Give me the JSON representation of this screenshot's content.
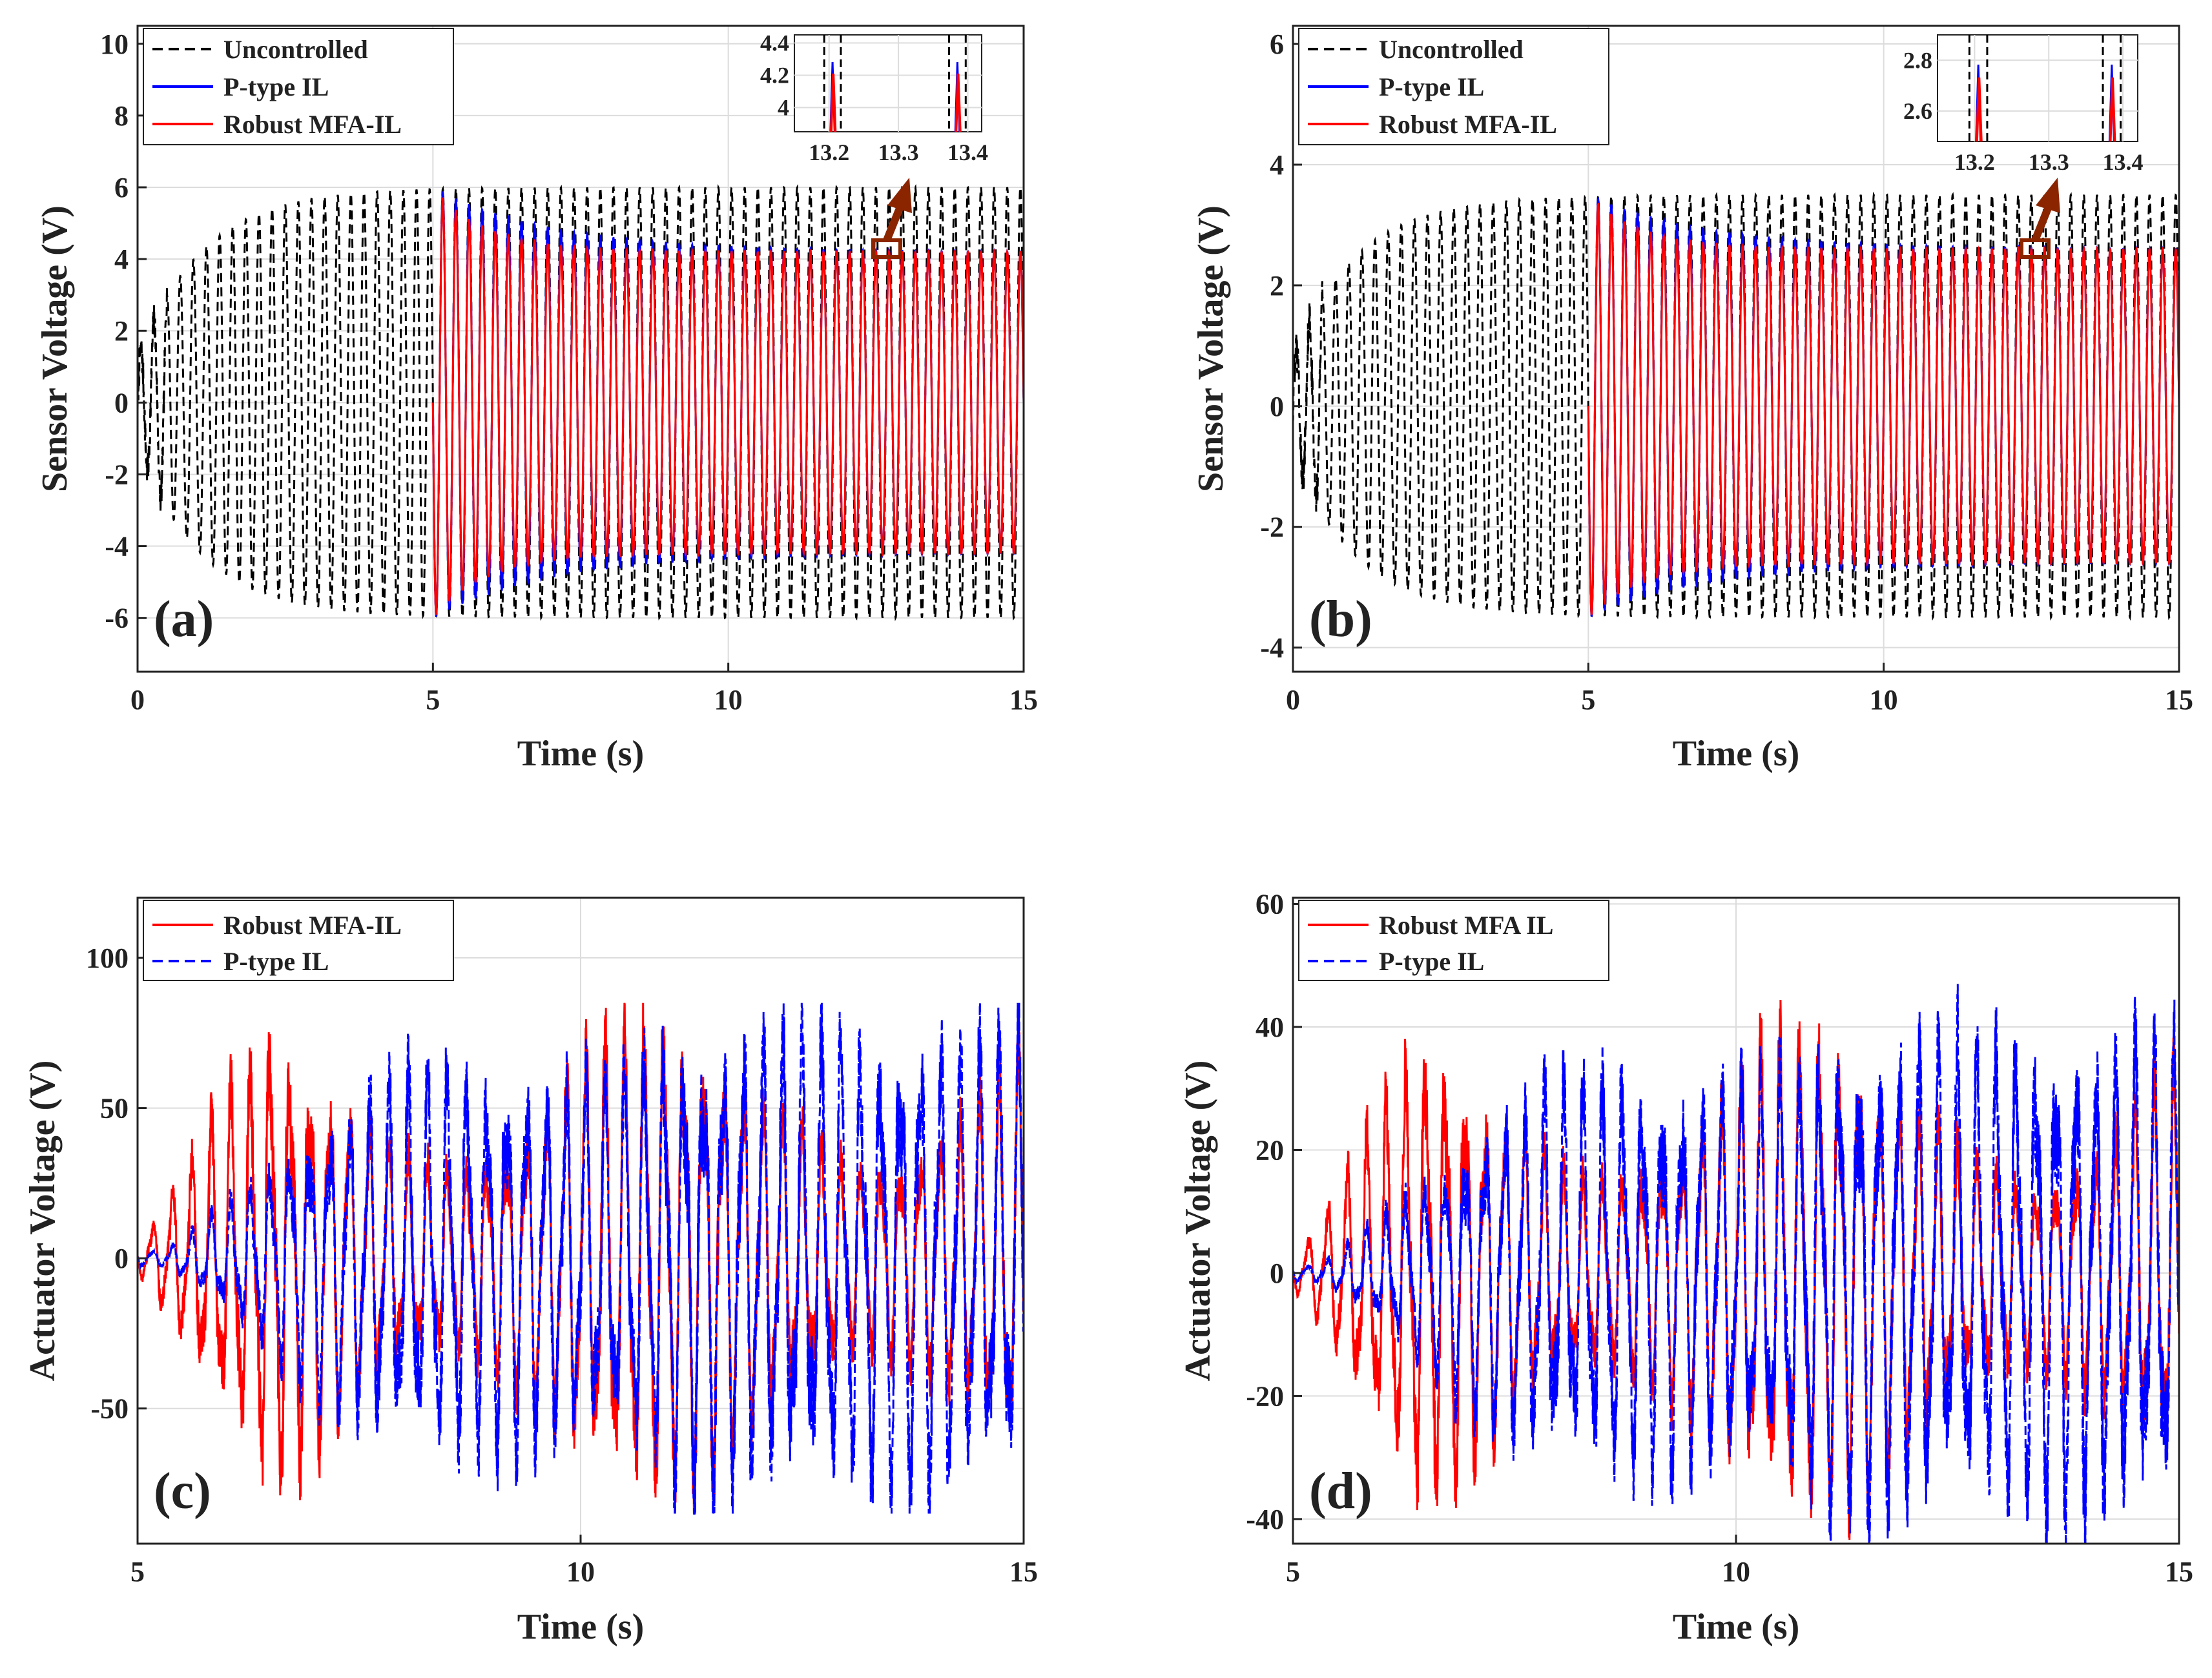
{
  "colors": {
    "uncontrolled": "#000000",
    "ptype": "#0000ff",
    "robust": "#ff0000",
    "grid": "#dcdcdc",
    "arrow": "#8b2500"
  },
  "chart_data": [
    {
      "panel": "a",
      "panel_label": "(a)",
      "type": "line",
      "xlabel": "Time (s)",
      "ylabel": "Sensor Voltage (V)",
      "xlim": [
        0,
        15
      ],
      "ylim": [
        -7.5,
        10.5
      ],
      "xticks": [
        0,
        5,
        10,
        15
      ],
      "xtick_labels": [
        "0",
        "5",
        "10",
        "15"
      ],
      "yticks": [
        -6,
        -4,
        -2,
        0,
        2,
        4,
        6,
        8,
        10
      ],
      "ytick_labels": [
        "-6",
        "-4",
        "-2",
        "0",
        "2",
        "4",
        "6",
        "8",
        "10"
      ],
      "control_on_time": 5,
      "signal": {
        "freq_hz": 4.5,
        "uncontrolled_amp": 6.0,
        "controlled_amp": 4.2,
        "initial_amp": 1.2,
        "rise_time_s": 2.5
      },
      "series": [
        {
          "name": "Uncontrolled",
          "style": "dashed",
          "color": "#000000"
        },
        {
          "name": "P-type IL",
          "style": "solid",
          "color": "#0000ff"
        },
        {
          "name": "Robust MFA-IL",
          "style": "solid",
          "color": "#ff0000"
        }
      ],
      "inset": {
        "xlim": [
          13.15,
          13.42
        ],
        "ylim": [
          3.85,
          4.45
        ],
        "xticks": [
          13.2,
          13.3,
          13.4
        ],
        "xtick_labels": [
          "13.2",
          "13.3",
          "13.4"
        ],
        "yticks": [
          4,
          4.2,
          4.4
        ],
        "ytick_labels": [
          "4",
          "4.2",
          "4.4"
        ],
        "peaks": [
          13.205,
          13.385
        ]
      }
    },
    {
      "panel": "b",
      "panel_label": "(b)",
      "type": "line",
      "xlabel": "Time (s)",
      "ylabel": "Sensor Voltage (V)",
      "xlim": [
        0,
        15
      ],
      "ylim": [
        -4.4,
        6.3
      ],
      "xticks": [
        0,
        5,
        10,
        15
      ],
      "xtick_labels": [
        "0",
        "5",
        "10",
        "15"
      ],
      "yticks": [
        -4,
        -2,
        0,
        2,
        4,
        6
      ],
      "ytick_labels": [
        "-4",
        "-2",
        "0",
        "2",
        "4",
        "6"
      ],
      "control_on_time": 5,
      "signal": {
        "freq_hz": 4.5,
        "uncontrolled_amp": 3.5,
        "controlled_amp": 2.6,
        "initial_amp": 0.8,
        "rise_time_s": 2.5
      },
      "series": [
        {
          "name": "Uncontrolled",
          "style": "dashed",
          "color": "#000000"
        },
        {
          "name": "P-type IL",
          "style": "solid",
          "color": "#0000ff"
        },
        {
          "name": "Robust MFA-IL",
          "style": "solid",
          "color": "#ff0000"
        }
      ],
      "inset": {
        "xlim": [
          13.15,
          13.42
        ],
        "ylim": [
          2.48,
          2.9
        ],
        "xticks": [
          13.2,
          13.3,
          13.4
        ],
        "xtick_labels": [
          "13.2",
          "13.3",
          "13.4"
        ],
        "yticks": [
          2.6,
          2.8
        ],
        "ytick_labels": [
          "2.6",
          "2.8"
        ],
        "peaks": [
          13.205,
          13.385
        ]
      }
    },
    {
      "panel": "c",
      "panel_label": "(c)",
      "type": "line",
      "xlabel": "Time (s)",
      "ylabel": "Actuator Voltage (V)",
      "xlim": [
        5,
        15
      ],
      "ylim": [
        -95,
        120
      ],
      "xticks": [
        5,
        10,
        15
      ],
      "xtick_labels": [
        "5",
        "10",
        "15"
      ],
      "yticks": [
        -50,
        0,
        50,
        100
      ],
      "ytick_labels": [
        "-50",
        "0",
        "50",
        "100"
      ],
      "signal": {
        "freq_hz": 4.5,
        "robust_amp": 65,
        "ptype_amp": 60,
        "peak_abs": 85
      },
      "series": [
        {
          "name": "Robust MFA-IL",
          "style": "solid",
          "color": "#ff0000"
        },
        {
          "name": "P-type IL",
          "style": "dashed",
          "color": "#0000ff"
        }
      ]
    },
    {
      "panel": "d",
      "panel_label": "(d)",
      "type": "line",
      "xlabel": "Time (s)",
      "ylabel": "Actuator Voltage (V)",
      "xlim": [
        5,
        15
      ],
      "ylim": [
        -44,
        61
      ],
      "xticks": [
        5,
        10,
        15
      ],
      "xtick_labels": [
        "5",
        "10",
        "15"
      ],
      "yticks": [
        -40,
        -20,
        0,
        20,
        40,
        60
      ],
      "ytick_labels": [
        "-40",
        "-20",
        "0",
        "20",
        "40",
        "60"
      ],
      "signal": {
        "freq_hz": 4.5,
        "robust_amp": 32,
        "ptype_amp": 30,
        "peak_abs": 47
      },
      "series": [
        {
          "name": "Robust MFA IL",
          "style": "solid",
          "color": "#ff0000"
        },
        {
          "name": "P-type IL",
          "style": "dashed",
          "color": "#0000ff"
        }
      ]
    }
  ]
}
